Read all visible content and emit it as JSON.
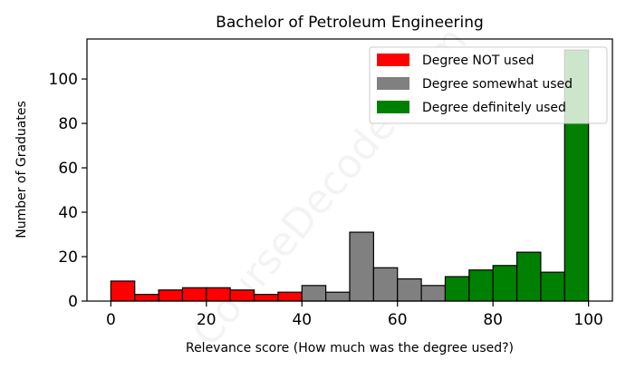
{
  "chart_data": {
    "type": "bar",
    "title": "Bachelor of Petroleum Engineering",
    "xlabel": "Relevance score (How much was the degree used?)",
    "ylabel": "Number of Graduates",
    "xlim": [
      -5,
      105
    ],
    "ylim": [
      0,
      118
    ],
    "xticks": [
      0,
      20,
      40,
      60,
      80,
      100
    ],
    "yticks": [
      0,
      20,
      40,
      60,
      80,
      100
    ],
    "bin_width": 5,
    "grid": false,
    "legend_position": "top-right",
    "watermark": "CourseDecoder.com",
    "series": [
      {
        "name": "Degree NOT used",
        "color": "#ff0000",
        "bins": [
          0,
          5,
          10,
          15,
          20,
          25,
          30,
          35
        ],
        "values": [
          9,
          3,
          5,
          6,
          6,
          5,
          3,
          4
        ]
      },
      {
        "name": "Degree somewhat used",
        "color": "#808080",
        "bins": [
          40,
          45,
          50,
          55,
          60,
          65
        ],
        "values": [
          7,
          4,
          31,
          15,
          10,
          7
        ]
      },
      {
        "name": "Degree definitely used",
        "color": "#008000",
        "bins": [
          70,
          75,
          80,
          85,
          90,
          95
        ],
        "values": [
          11,
          14,
          16,
          22,
          13,
          113
        ]
      }
    ]
  }
}
